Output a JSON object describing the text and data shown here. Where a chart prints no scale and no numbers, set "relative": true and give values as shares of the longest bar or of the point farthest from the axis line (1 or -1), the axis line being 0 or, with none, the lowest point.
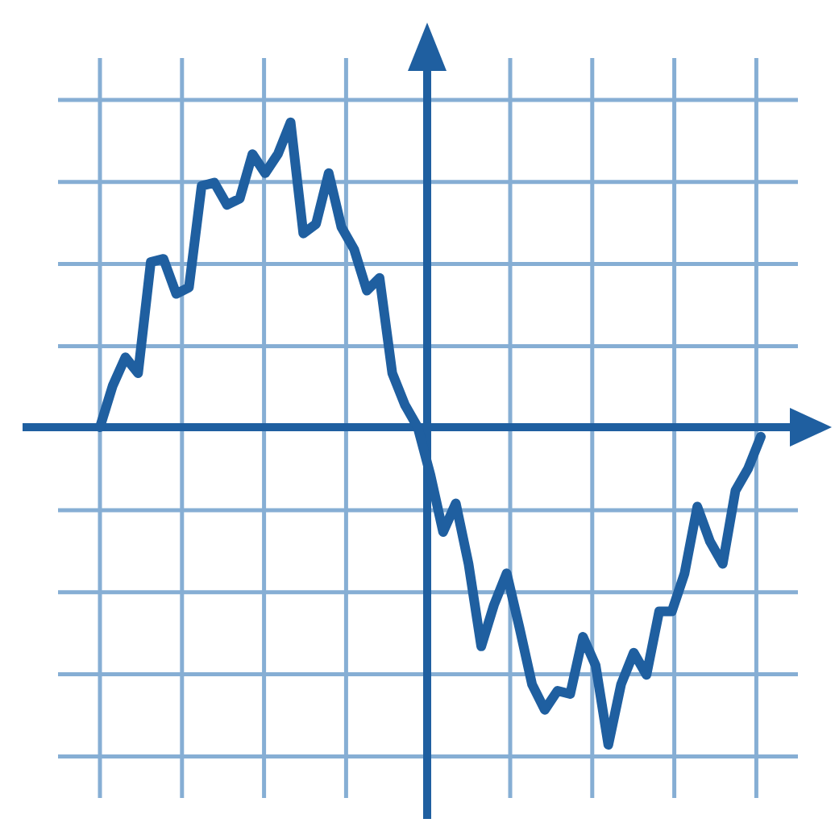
{
  "chart_data": {
    "type": "line",
    "relative": true,
    "grid": true,
    "marker": "none",
    "ref_lines": [
      {
        "axis": "y",
        "value": 0,
        "color": "#1f5fa0"
      }
    ],
    "line_style": "solid",
    "categories": [
      null,
      null,
      null,
      null,
      null,
      null,
      null,
      null,
      null,
      null,
      null,
      null,
      null,
      null,
      null,
      null,
      null,
      null,
      null,
      null,
      null,
      null,
      null,
      null,
      null,
      null,
      null,
      null,
      null,
      null,
      null,
      null,
      null,
      null,
      null,
      null,
      null,
      null,
      null,
      null,
      null,
      null,
      null,
      null,
      null,
      null,
      null,
      null,
      null,
      null,
      null,
      null,
      null
    ],
    "series": [
      {
        "color": "#1f5fa0",
        "values": [
          0,
          0.13,
          0.22,
          0.17,
          0.52,
          0.53,
          0.42,
          0.44,
          0.76,
          0.77,
          0.7,
          0.72,
          0.86,
          0.8,
          0.86,
          0.96,
          0.61,
          0.64,
          0.8,
          0.63,
          0.56,
          0.43,
          0.47,
          0.17,
          0.07,
          0,
          -0.15,
          -0.33,
          -0.24,
          -0.43,
          -0.69,
          -0.56,
          -0.46,
          -0.63,
          -0.81,
          -0.89,
          -0.83,
          -0.84,
          -0.66,
          -0.75,
          -1,
          -0.81,
          -0.71,
          -0.78,
          -0.58,
          -0.58,
          -0.46,
          -0.25,
          -0.36,
          -0.43,
          -0.2,
          -0.13,
          -0.03
        ]
      }
    ]
  }
}
